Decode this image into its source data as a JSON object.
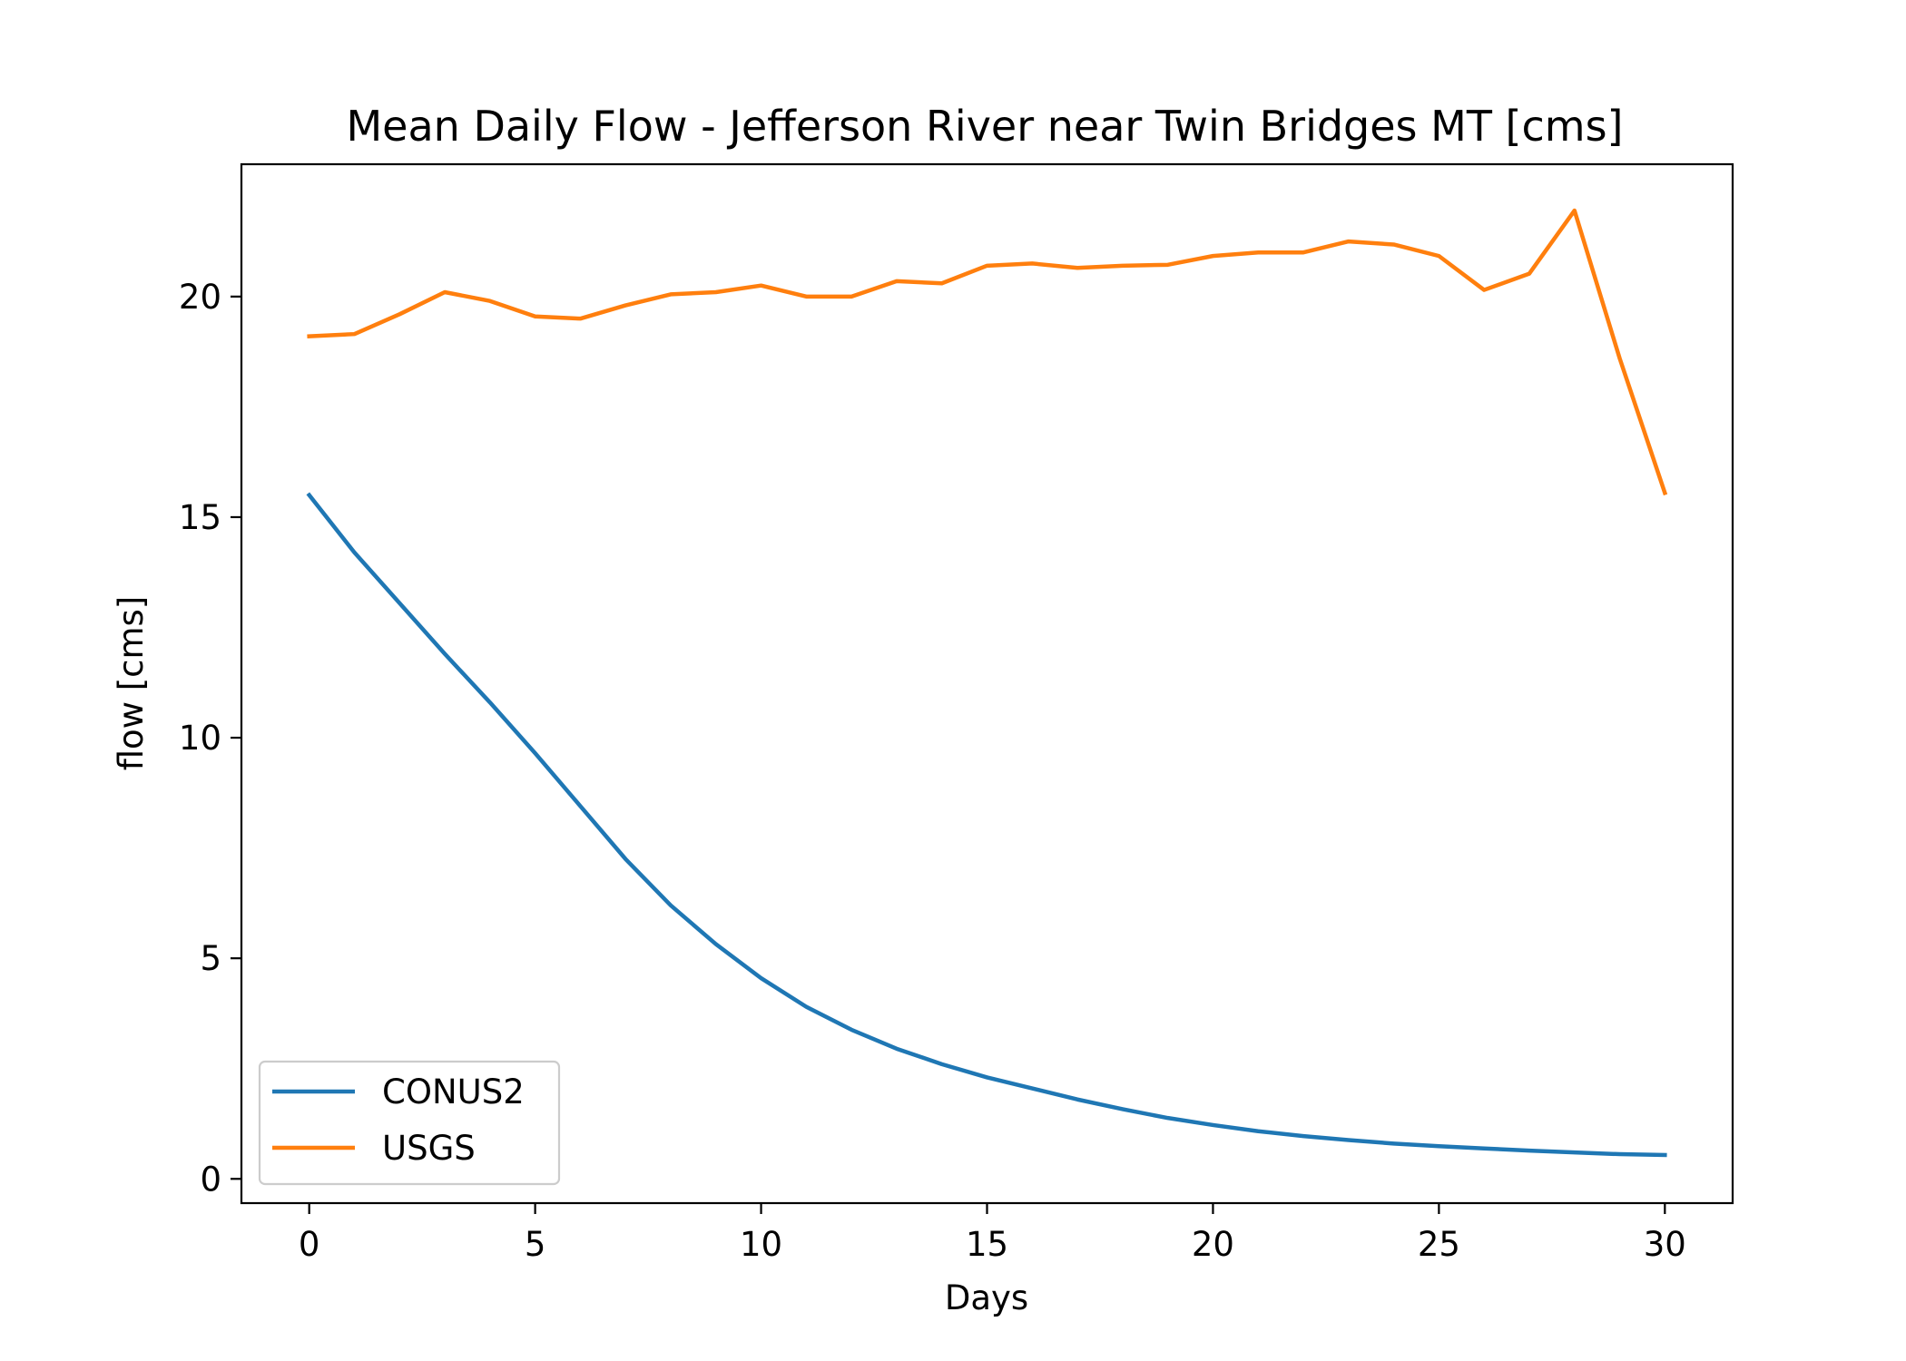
{
  "chart_data": {
    "type": "line",
    "title": "Mean Daily Flow - Jefferson River near Twin Bridges MT [cms]",
    "xlabel": "Days",
    "ylabel": "flow [cms]",
    "xlim": [
      -1.5,
      31.5
    ],
    "ylim": [
      -0.55,
      23.0
    ],
    "xticks": [
      0,
      5,
      10,
      15,
      20,
      25,
      30
    ],
    "yticks": [
      0,
      5,
      10,
      15,
      20
    ],
    "grid": false,
    "legend_position": "lower-left",
    "x": [
      0,
      1,
      2,
      3,
      4,
      5,
      6,
      7,
      8,
      9,
      10,
      11,
      12,
      13,
      14,
      15,
      16,
      17,
      18,
      19,
      20,
      21,
      22,
      23,
      24,
      25,
      26,
      27,
      28,
      29,
      30
    ],
    "series": [
      {
        "name": "CONUS2",
        "color": "#1f77b4",
        "values": [
          15.5,
          14.2,
          13.05,
          11.9,
          10.8,
          9.65,
          8.45,
          7.25,
          6.2,
          5.32,
          4.55,
          3.9,
          3.38,
          2.95,
          2.6,
          2.3,
          2.05,
          1.8,
          1.58,
          1.38,
          1.22,
          1.08,
          0.97,
          0.88,
          0.8,
          0.74,
          0.69,
          0.64,
          0.6,
          0.56,
          0.54
        ]
      },
      {
        "name": "USGS",
        "color": "#ff7f0e",
        "values": [
          19.1,
          19.15,
          19.6,
          20.1,
          19.9,
          19.55,
          19.5,
          19.8,
          20.05,
          20.1,
          20.25,
          20.0,
          20.0,
          20.35,
          20.3,
          20.7,
          20.75,
          20.65,
          20.7,
          20.72,
          20.92,
          21.0,
          21.0,
          21.25,
          21.18,
          20.92,
          20.15,
          20.52,
          21.95,
          18.6,
          15.55
        ]
      }
    ]
  }
}
